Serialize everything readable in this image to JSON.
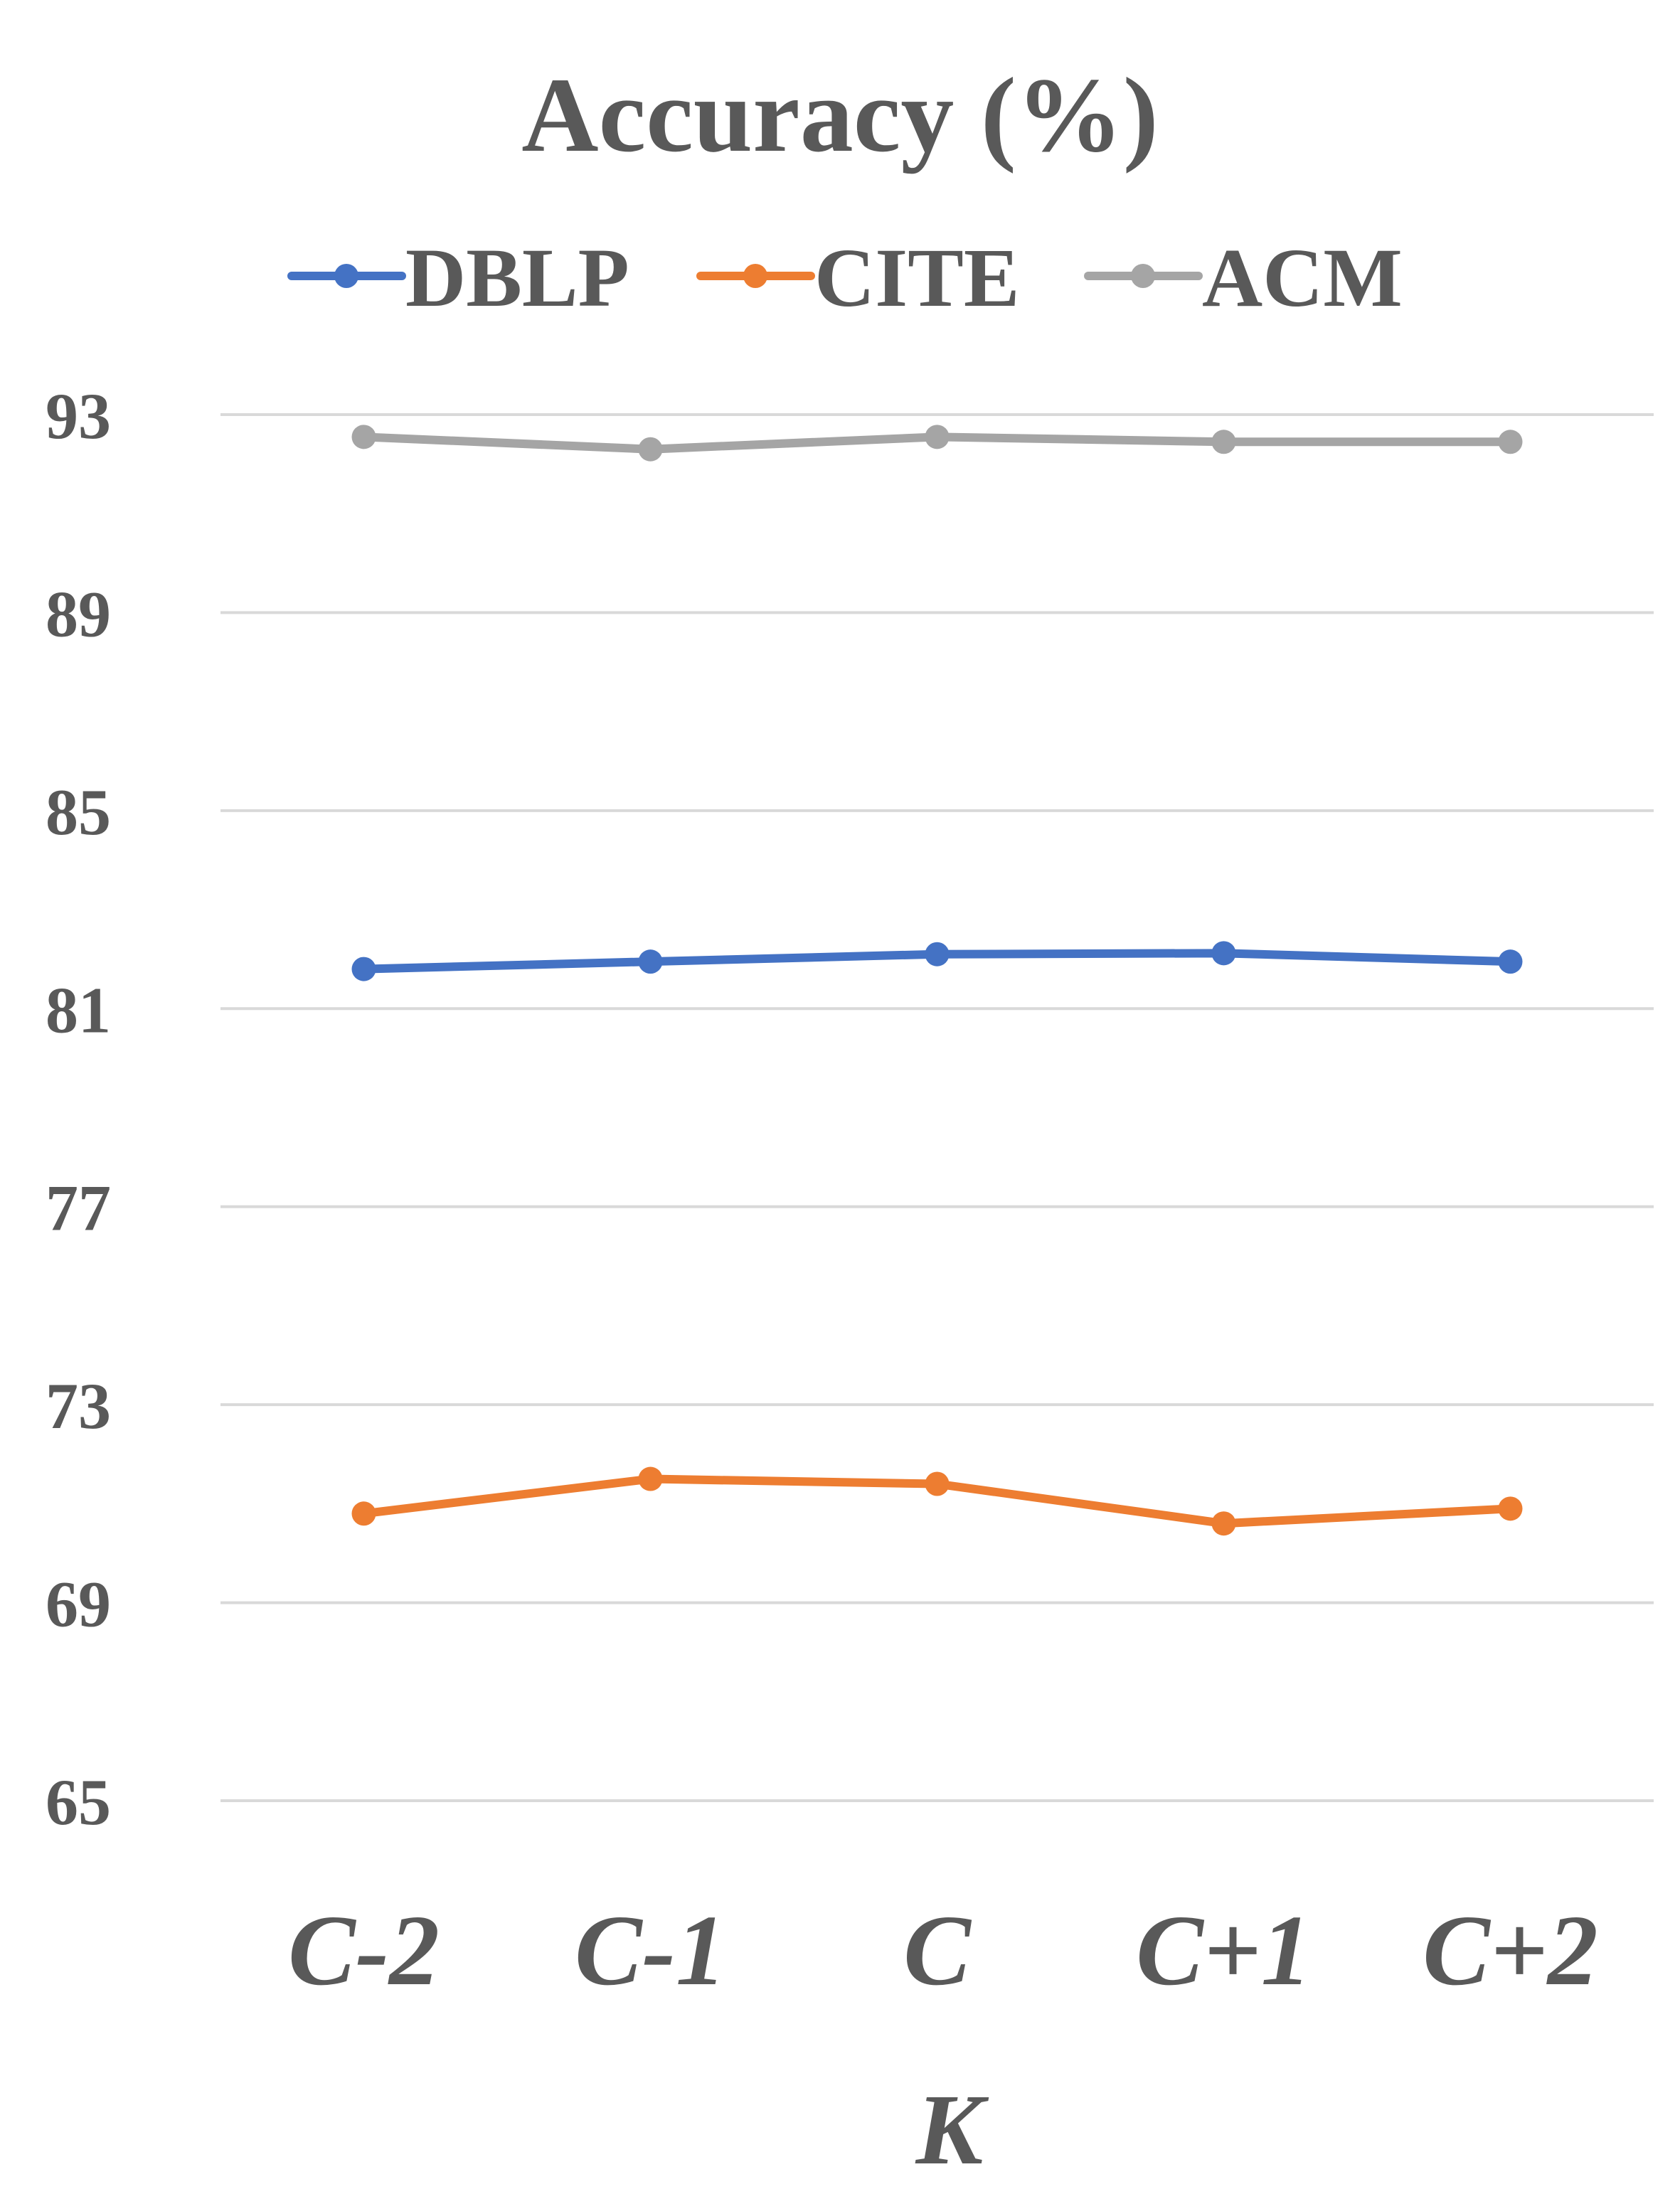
{
  "chart_data": {
    "type": "line",
    "title": "Accuracy (%)",
    "xlabel": "K",
    "ylabel": "",
    "categories": [
      "C-2",
      "C-1",
      "C",
      "C+1",
      "C+2"
    ],
    "ylim": [
      65,
      93
    ],
    "yticks": [
      93,
      89,
      85,
      81,
      77,
      73,
      69,
      65
    ],
    "grid": true,
    "legend_position": "top",
    "series": [
      {
        "name": "DBLP",
        "color": "#4472C4",
        "values": [
          81.8,
          81.95,
          82.1,
          82.12,
          81.95
        ]
      },
      {
        "name": "CITE",
        "color": "#ED7D31",
        "values": [
          70.8,
          71.5,
          71.4,
          70.6,
          70.9
        ]
      },
      {
        "name": "ACM",
        "color": "#A5A5A5",
        "values": [
          92.55,
          92.3,
          92.55,
          92.45,
          92.45
        ]
      }
    ]
  }
}
